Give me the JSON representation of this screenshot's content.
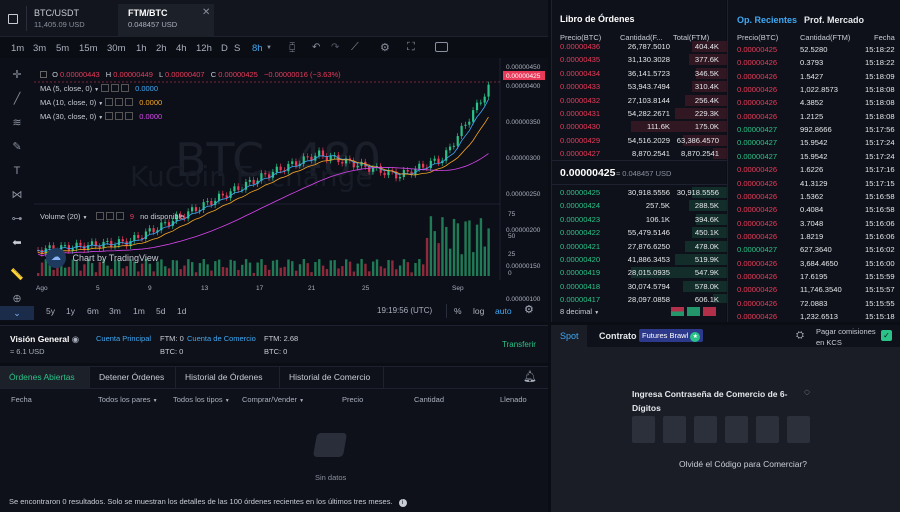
{
  "tabs": [
    {
      "pair": "BTC/USDT",
      "price": "11,405.09 USD"
    },
    {
      "pair": "FTM/BTC",
      "price": "0.048457 USD"
    }
  ],
  "timeframes": [
    "1m",
    "3m",
    "5m",
    "15m",
    "30m",
    "1h",
    "2h",
    "4h",
    "12h",
    "D",
    "S",
    "8h"
  ],
  "ohlc": {
    "o_label": "O",
    "o": "0.00000443",
    "h_label": "H",
    "h": "0.00000449",
    "l_label": "L",
    "l": "0.00000407",
    "c_label": "C",
    "c": "0.00000425",
    "chg": "−0.00000016 (−3.63%)"
  },
  "indicators": [
    {
      "label": "MA (5, close, 0)",
      "value": "0.0000",
      "color": "#3fa9f5"
    },
    {
      "label": "MA (10, close, 0)",
      "value": "0.0000",
      "color": "#f5a623"
    },
    {
      "label": "MA (30, close, 0)",
      "value": "0.0000",
      "color": "#d946ef"
    }
  ],
  "volume": {
    "label": "Volume (20)",
    "count": "9",
    "status": "no disponible"
  },
  "watermark": {
    "text": "BTC, 480",
    "sub": "KuCoin Exchange"
  },
  "tv_label": "Chart by TradingView",
  "price_axis": [
    "0.00000450",
    "0.00000425",
    "0.00000400",
    "0.00000350",
    "0.00000300",
    "0.00000250",
    "0.00000200",
    "0.00000150",
    "0.00000100"
  ],
  "vol_axis": [
    "75",
    "50",
    "25",
    "0"
  ],
  "x_axis": [
    "Ago",
    "5",
    "9",
    "13",
    "17",
    "21",
    "25",
    "Sep"
  ],
  "ranges": [
    "5y",
    "1y",
    "6m",
    "3m",
    "1m",
    "5d",
    "1d"
  ],
  "bottom_toolbar": {
    "time": "19:19:56 (UTC)",
    "pct": "%",
    "log": "log",
    "auto": "auto"
  },
  "orderbook": {
    "title": "Libro de Órdenes",
    "headers": [
      "Precio(BTC)",
      "Cantidad(F...",
      "Total(FTM)"
    ],
    "asks": [
      [
        "0.00000436",
        "26,787.5010",
        "404.4K"
      ],
      [
        "0.00000435",
        "31,130.3028",
        "377.6K"
      ],
      [
        "0.00000434",
        "36,141.5723",
        "346.5K"
      ],
      [
        "0.00000433",
        "53,943.7494",
        "310.4K"
      ],
      [
        "0.00000432",
        "27,103.8144",
        "256.4K"
      ],
      [
        "0.00000431",
        "54,282.2671",
        "229.3K"
      ],
      [
        "0.00000430",
        "111.6K",
        "175.0K"
      ],
      [
        "0.00000429",
        "54,516.2029",
        "63,386.4570"
      ],
      [
        "0.00000427",
        "8,870.2541",
        "8,870.2541"
      ]
    ],
    "mid": {
      "price": "0.00000425",
      "usd": "≈ 0.048457 USD"
    },
    "bids": [
      [
        "0.00000425",
        "30,918.5556",
        "30,918.5556"
      ],
      [
        "0.00000424",
        "257.5K",
        "288.5K"
      ],
      [
        "0.00000423",
        "106.1K",
        "394.6K"
      ],
      [
        "0.00000422",
        "55,479.5146",
        "450.1K"
      ],
      [
        "0.00000421",
        "27,876.6250",
        "478.0K"
      ],
      [
        "0.00000420",
        "41,886.3453",
        "519.9K"
      ],
      [
        "0.00000419",
        "28,015.0935",
        "547.9K"
      ],
      [
        "0.00000418",
        "30,074.5794",
        "578.0K"
      ],
      [
        "0.00000417",
        "28,097.0858",
        "606.1K"
      ]
    ],
    "decimals": "8 decimal"
  },
  "trades": {
    "tab_active": "Op. Recientes",
    "tab_other": "Prof. Mercado",
    "headers": [
      "Precio(BTC)",
      "Cantidad(FTM)",
      "Fecha"
    ],
    "rows": [
      [
        "0.00000425",
        "52.5280",
        "15:18:22",
        "r"
      ],
      [
        "0.00000426",
        "0.3793",
        "15:18:22",
        "r"
      ],
      [
        "0.00000426",
        "1.5427",
        "15:18:09",
        "r"
      ],
      [
        "0.00000426",
        "1,022.8573",
        "15:18:08",
        "r"
      ],
      [
        "0.00000426",
        "4.3852",
        "15:18:08",
        "r"
      ],
      [
        "0.00000426",
        "1.2125",
        "15:18:08",
        "r"
      ],
      [
        "0.00000427",
        "992.8666",
        "15:17:56",
        "g"
      ],
      [
        "0.00000427",
        "15.9542",
        "15:17:24",
        "g"
      ],
      [
        "0.00000427",
        "15.9542",
        "15:17:24",
        "g"
      ],
      [
        "0.00000426",
        "1.6226",
        "15:17:16",
        "r"
      ],
      [
        "0.00000426",
        "41.3129",
        "15:17:15",
        "r"
      ],
      [
        "0.00000426",
        "1.5362",
        "15:16:58",
        "r"
      ],
      [
        "0.00000426",
        "0.4084",
        "15:16:58",
        "r"
      ],
      [
        "0.00000426",
        "3.7048",
        "15:16:06",
        "r"
      ],
      [
        "0.00000426",
        "1.8219",
        "15:16:06",
        "r"
      ],
      [
        "0.00000427",
        "627.3640",
        "15:16:02",
        "g"
      ],
      [
        "0.00000426",
        "3,684.4650",
        "15:16:00",
        "r"
      ],
      [
        "0.00000426",
        "17.6195",
        "15:15:59",
        "r"
      ],
      [
        "0.00000426",
        "11,746.3540",
        "15:15:57",
        "r"
      ],
      [
        "0.00000426",
        "72.0883",
        "15:15:55",
        "r"
      ],
      [
        "0.00000426",
        "1,232.6513",
        "15:15:18",
        "r"
      ]
    ]
  },
  "account": {
    "vision": "Visión General",
    "total": "≈ 6.1 USD",
    "main": "Cuenta Principal",
    "ftm_main": "FTM: 0",
    "btc_main": "BTC: 0",
    "trade": "Cuenta de Comercio",
    "ftm_trade": "FTM: 2.68",
    "btc_trade": "BTC: 0",
    "transfer": "Transferir"
  },
  "orders": {
    "tabs": [
      "Órdenes Abiertas",
      "Detener Órdenes",
      "Historial de Órdenes",
      "Historial de Comercio"
    ],
    "cols": [
      "Fecha",
      "Todos los pares",
      "Todos los tipos",
      "Comprar/Vender",
      "Precio",
      "Cantidad",
      "Llenado"
    ],
    "empty": "Sin datos",
    "footer": "Se encontraron 0 resultados. Solo se muestran los detalles de las 100 órdenes recientes en los últimos tres meses."
  },
  "trade_panel": {
    "spot": "Spot",
    "contract": "Contrato",
    "badge": "Futures Brawl",
    "fees": "Pagar comisiones en KCS",
    "pin_prompt": "Ingresa Contraseña de Comercio de 6-Dígitos",
    "forgot": "Olvidé el Código para Comerciar?"
  }
}
